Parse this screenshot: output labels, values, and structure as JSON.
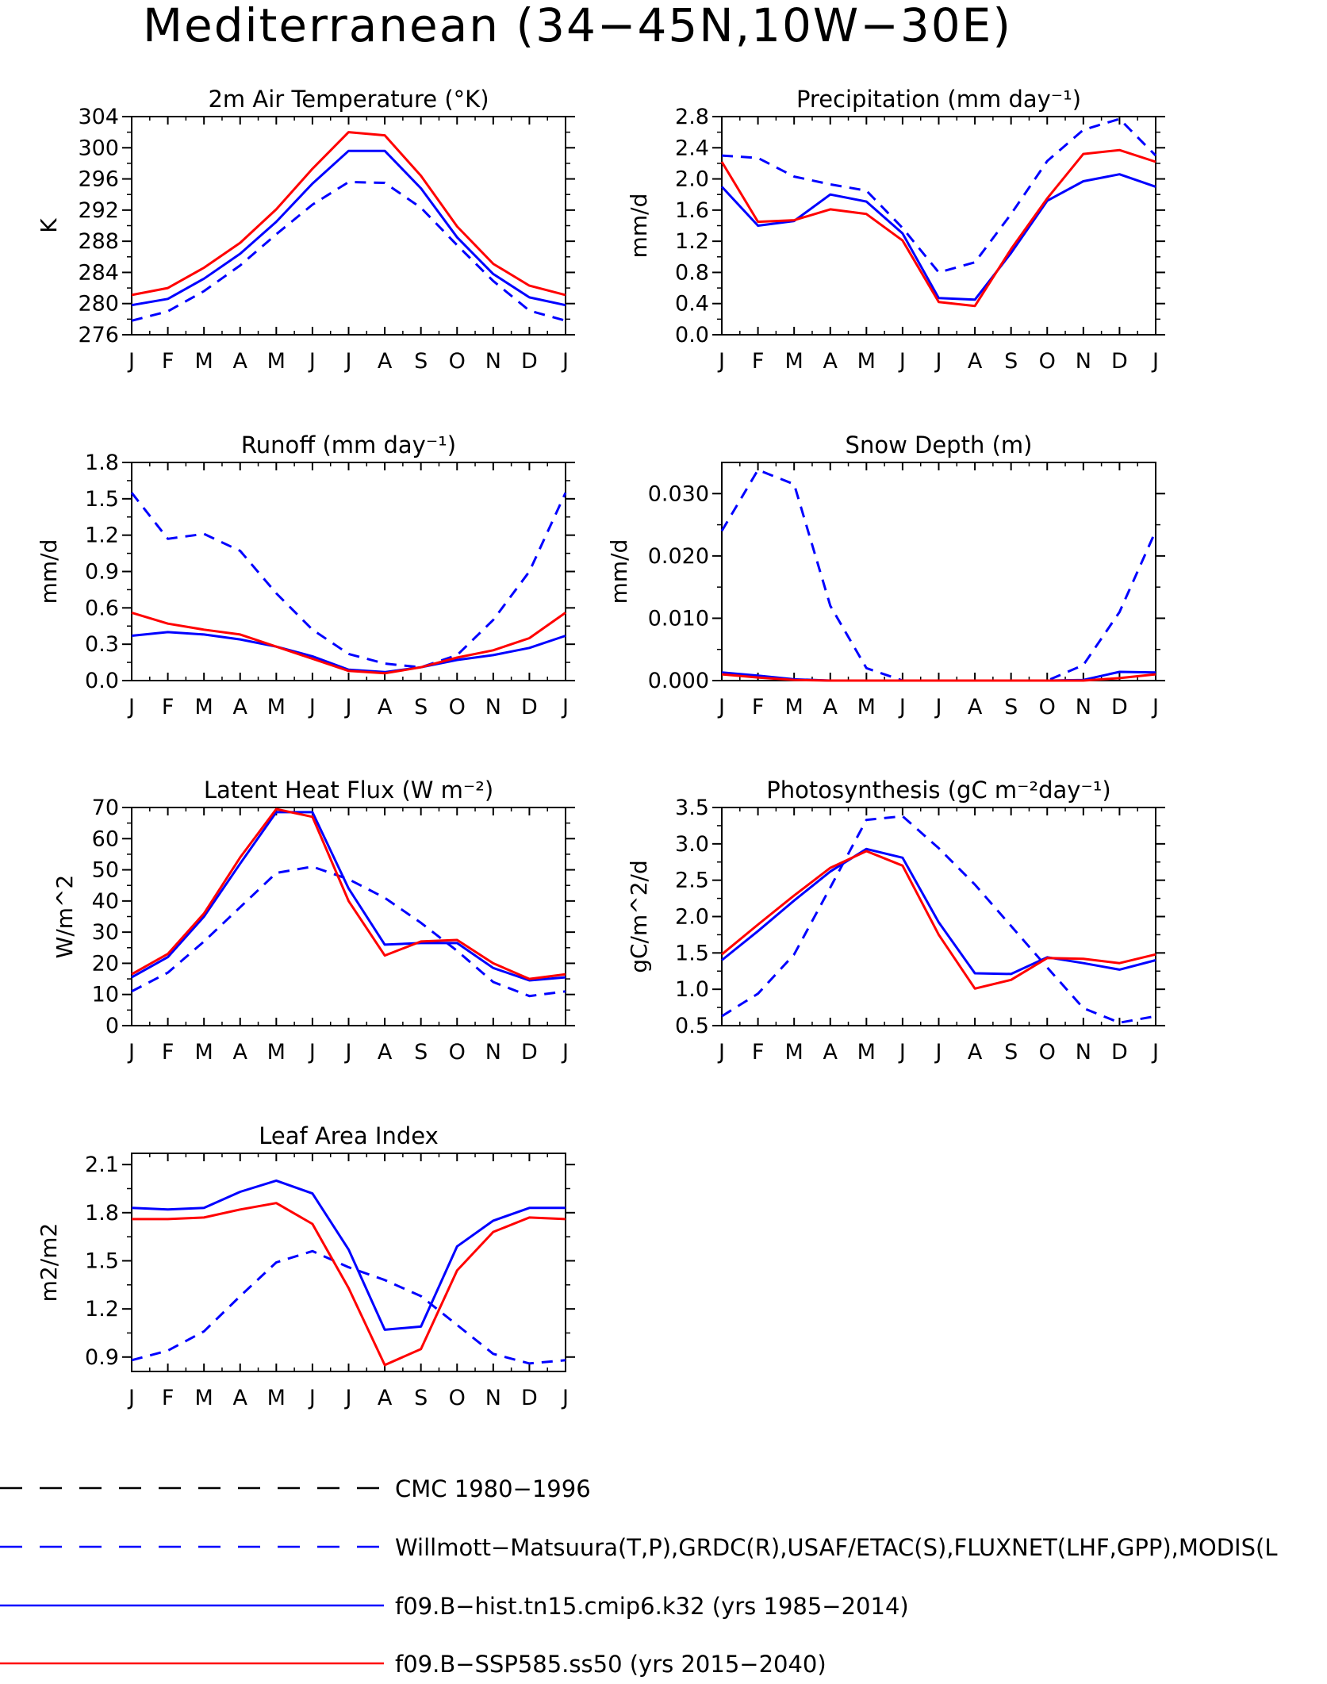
{
  "figure": {
    "title": "Mediterranean (34−45N,10W−30E)"
  },
  "colors": {
    "red": "#ff0000",
    "blue": "#0000ff",
    "black": "#000000"
  },
  "months": [
    "J",
    "F",
    "M",
    "A",
    "M",
    "J",
    "J",
    "A",
    "S",
    "O",
    "N",
    "D",
    "J"
  ],
  "chart_data": [
    {
      "type": "line",
      "title": "2m Air Temperature (°K)",
      "ylabel": "K",
      "ylim": [
        276,
        304
      ],
      "yticks": [
        "276",
        "280",
        "284",
        "288",
        "292",
        "296",
        "300",
        "304"
      ],
      "series": [
        {
          "style": "dashed",
          "color": "blue",
          "values": [
            277.8,
            279.0,
            281.6,
            284.9,
            288.9,
            292.7,
            295.6,
            295.5,
            292.3,
            287.5,
            282.9,
            279.1,
            277.8
          ]
        },
        {
          "style": "solid",
          "color": "blue",
          "values": [
            279.8,
            280.6,
            283.2,
            286.4,
            290.5,
            295.4,
            299.6,
            299.6,
            294.8,
            288.5,
            283.8,
            280.8,
            279.8
          ]
        },
        {
          "style": "solid",
          "color": "red",
          "values": [
            281.1,
            282.0,
            284.6,
            287.8,
            292.1,
            297.3,
            302.0,
            301.6,
            296.4,
            289.9,
            285.1,
            282.3,
            281.1
          ]
        }
      ]
    },
    {
      "type": "line",
      "title": "Precipitation (mm day⁻¹)",
      "ylabel": "mm/d",
      "ylim": [
        0,
        2.8
      ],
      "yticks": [
        "0.0",
        "0.4",
        "0.8",
        "1.2",
        "1.6",
        "2.0",
        "2.4",
        "2.8"
      ],
      "series": [
        {
          "style": "dashed",
          "color": "blue",
          "values": [
            2.3,
            2.27,
            2.03,
            1.93,
            1.85,
            1.37,
            0.8,
            0.93,
            1.55,
            2.23,
            2.63,
            2.77,
            2.3
          ]
        },
        {
          "style": "solid",
          "color": "blue",
          "values": [
            1.9,
            1.4,
            1.46,
            1.8,
            1.71,
            1.3,
            0.47,
            0.45,
            1.05,
            1.72,
            1.97,
            2.06,
            1.9
          ]
        },
        {
          "style": "solid",
          "color": "red",
          "values": [
            2.22,
            1.45,
            1.47,
            1.61,
            1.55,
            1.21,
            0.42,
            0.37,
            1.1,
            1.75,
            2.32,
            2.37,
            2.22
          ]
        }
      ]
    },
    {
      "type": "line",
      "title": "Runoff (mm day⁻¹)",
      "ylabel": "mm/d",
      "ylim": [
        0,
        1.8
      ],
      "yticks": [
        "0.0",
        "0.3",
        "0.6",
        "0.9",
        "1.2",
        "1.5",
        "1.8"
      ],
      "series": [
        {
          "style": "dashed",
          "color": "blue",
          "values": [
            1.55,
            1.17,
            1.21,
            1.07,
            0.72,
            0.42,
            0.22,
            0.14,
            0.11,
            0.21,
            0.5,
            0.9,
            1.55
          ]
        },
        {
          "style": "solid",
          "color": "blue",
          "values": [
            0.37,
            0.4,
            0.38,
            0.34,
            0.28,
            0.2,
            0.09,
            0.07,
            0.11,
            0.17,
            0.21,
            0.27,
            0.37
          ]
        },
        {
          "style": "solid",
          "color": "red",
          "values": [
            0.56,
            0.47,
            0.42,
            0.38,
            0.28,
            0.18,
            0.08,
            0.06,
            0.11,
            0.19,
            0.25,
            0.35,
            0.56
          ]
        }
      ]
    },
    {
      "type": "line",
      "title": "Snow Depth (m)",
      "ylabel": "mm/d",
      "ylim": [
        0,
        0.035
      ],
      "yticks": [
        "0.000",
        "0.010",
        "0.020",
        "0.030"
      ],
      "ytick_values": [
        0,
        0.01,
        0.02,
        0.03
      ],
      "series": [
        {
          "style": "dashed",
          "color": "blue",
          "values": [
            0.024,
            0.0338,
            0.0315,
            0.012,
            0.002,
            0.0,
            0.0,
            0.0,
            0.0,
            0.0,
            0.0025,
            0.011,
            0.024
          ]
        },
        {
          "style": "solid",
          "color": "blue",
          "values": [
            0.0013,
            0.0008,
            0.0002,
            0.0,
            0.0,
            0.0,
            0.0,
            0.0,
            0.0,
            0.0,
            0.0001,
            0.0014,
            0.0013
          ]
        },
        {
          "style": "solid",
          "color": "red",
          "values": [
            0.001,
            0.0005,
            0.0001,
            0.0,
            0.0,
            0.0,
            0.0,
            0.0,
            0.0,
            0.0,
            0.0,
            0.0004,
            0.001
          ]
        }
      ]
    },
    {
      "type": "line",
      "title": "Latent Heat Flux (W m⁻²)",
      "ylabel": "W/m^2",
      "ylim": [
        0,
        70
      ],
      "yticks": [
        "0",
        "10",
        "20",
        "30",
        "40",
        "50",
        "60",
        "70"
      ],
      "series": [
        {
          "style": "dashed",
          "color": "blue",
          "values": [
            11,
            17,
            27,
            38,
            49,
            51,
            47,
            41,
            33,
            24,
            14,
            9.5,
            11
          ]
        },
        {
          "style": "solid",
          "color": "blue",
          "values": [
            15.5,
            22,
            35,
            52,
            68.5,
            68.5,
            44,
            26,
            26.5,
            26.5,
            18.5,
            14.5,
            15.5
          ]
        },
        {
          "style": "solid",
          "color": "red",
          "values": [
            16.5,
            23,
            36,
            54,
            69.5,
            67,
            40,
            22.5,
            27,
            27.5,
            20,
            15,
            16.5
          ]
        }
      ]
    },
    {
      "type": "line",
      "title": "Photosynthesis (gC m⁻²day⁻¹)",
      "ylabel": "gC/m^2/d",
      "ylim": [
        0.5,
        3.5
      ],
      "yticks": [
        "0.5",
        "1.0",
        "1.5",
        "2.0",
        "2.5",
        "3.0",
        "3.5"
      ],
      "series": [
        {
          "style": "dashed",
          "color": "blue",
          "values": [
            0.63,
            0.94,
            1.48,
            2.4,
            3.33,
            3.38,
            2.94,
            2.44,
            1.87,
            1.3,
            0.74,
            0.54,
            0.63
          ]
        },
        {
          "style": "solid",
          "color": "blue",
          "values": [
            1.4,
            1.8,
            2.22,
            2.62,
            2.93,
            2.81,
            1.92,
            1.22,
            1.21,
            1.44,
            1.36,
            1.27,
            1.4
          ]
        },
        {
          "style": "solid",
          "color": "red",
          "values": [
            1.48,
            1.89,
            2.29,
            2.67,
            2.9,
            2.7,
            1.75,
            1.01,
            1.13,
            1.43,
            1.42,
            1.36,
            1.48
          ]
        }
      ]
    },
    {
      "type": "line",
      "title": "Leaf Area Index",
      "ylabel": "m2/m2",
      "ylim": [
        0.81,
        2.17
      ],
      "yticks": [
        "0.9",
        "1.2",
        "1.5",
        "1.8",
        "2.1"
      ],
      "ytick_values": [
        0.9,
        1.2,
        1.5,
        1.8,
        2.1
      ],
      "series": [
        {
          "style": "dashed",
          "color": "blue",
          "values": [
            0.88,
            0.94,
            1.06,
            1.28,
            1.49,
            1.56,
            1.46,
            1.38,
            1.28,
            1.1,
            0.92,
            0.86,
            0.88
          ]
        },
        {
          "style": "solid",
          "color": "blue",
          "values": [
            1.83,
            1.82,
            1.83,
            1.93,
            2.0,
            1.92,
            1.57,
            1.07,
            1.09,
            1.59,
            1.75,
            1.83,
            1.83
          ]
        },
        {
          "style": "solid",
          "color": "red",
          "values": [
            1.76,
            1.76,
            1.77,
            1.82,
            1.86,
            1.73,
            1.33,
            0.85,
            0.95,
            1.44,
            1.68,
            1.77,
            1.76
          ]
        }
      ]
    }
  ],
  "legend": [
    {
      "style": "dashed",
      "color": "black",
      "label": "CMC 1980−1996"
    },
    {
      "style": "dashed",
      "color": "blue",
      "label": "Willmott−Matsuura(T,P),GRDC(R),USAF/ETAC(S),FLUXNET(LHF,GPP),MODIS(L"
    },
    {
      "style": "solid",
      "color": "blue",
      "label": "f09.B−hist.tn15.cmip6.k32 (yrs 1985−2014)"
    },
    {
      "style": "solid",
      "color": "red",
      "label": "f09.B−SSP585.ss50 (yrs 2015−2040)"
    }
  ]
}
